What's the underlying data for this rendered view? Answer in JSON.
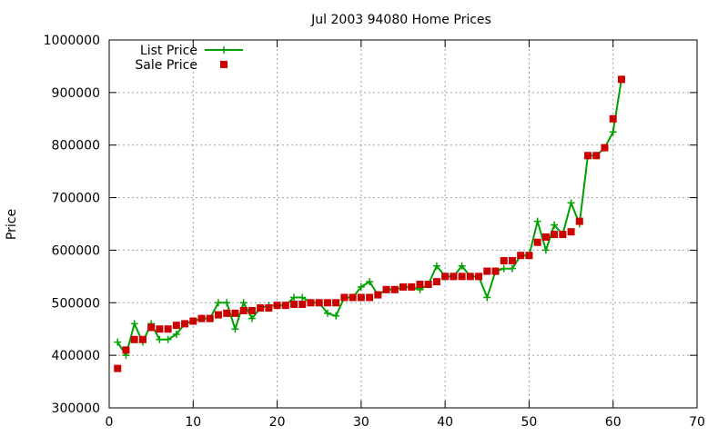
{
  "chart_data": {
    "type": "line",
    "title": "Jul 2003 94080 Home Prices",
    "xlabel": "",
    "ylabel": "Price",
    "xlim": [
      0,
      70
    ],
    "ylim": [
      300000,
      1000000
    ],
    "xticks": [
      0,
      10,
      20,
      30,
      40,
      50,
      60,
      70
    ],
    "yticks": [
      300000,
      400000,
      500000,
      600000,
      700000,
      800000,
      900000,
      1000000
    ],
    "grid": true,
    "legend_position": "top-left",
    "series": [
      {
        "name": "List Price",
        "style": "line-with-plus-markers",
        "color": "#00a000",
        "x": [
          1,
          2,
          3,
          4,
          5,
          6,
          7,
          8,
          9,
          10,
          11,
          12,
          13,
          14,
          15,
          16,
          17,
          18,
          19,
          20,
          21,
          22,
          23,
          24,
          25,
          26,
          27,
          28,
          29,
          30,
          31,
          32,
          33,
          34,
          35,
          36,
          37,
          38,
          39,
          40,
          41,
          42,
          43,
          44,
          45,
          46,
          47,
          48,
          49,
          50,
          51,
          52,
          53,
          54,
          55,
          56,
          57,
          58,
          59,
          60,
          61
        ],
        "values": [
          425000,
          400000,
          460000,
          425000,
          460000,
          430000,
          430000,
          440000,
          460000,
          465000,
          470000,
          470000,
          500000,
          500000,
          450000,
          500000,
          470000,
          490000,
          495000,
          495000,
          495000,
          510000,
          510000,
          500000,
          500000,
          480000,
          475000,
          510000,
          510000,
          530000,
          540000,
          515000,
          525000,
          525000,
          530000,
          530000,
          525000,
          535000,
          570000,
          550000,
          550000,
          570000,
          550000,
          550000,
          510000,
          560000,
          565000,
          565000,
          590000,
          590000,
          655000,
          600000,
          648000,
          630000,
          690000,
          650000,
          780000,
          780000,
          795000,
          825000,
          925000
        ]
      },
      {
        "name": "Sale Price",
        "style": "square-markers",
        "color": "#cc0000",
        "x": [
          1,
          2,
          3,
          4,
          5,
          6,
          7,
          8,
          9,
          10,
          11,
          12,
          13,
          14,
          15,
          16,
          17,
          18,
          19,
          20,
          21,
          22,
          23,
          24,
          25,
          26,
          27,
          28,
          29,
          30,
          31,
          32,
          33,
          34,
          35,
          36,
          37,
          38,
          39,
          40,
          41,
          42,
          43,
          44,
          45,
          46,
          47,
          48,
          49,
          50,
          51,
          52,
          53,
          54,
          55,
          56,
          57,
          58,
          59,
          60,
          61
        ],
        "values": [
          375000,
          410000,
          430000,
          430000,
          453000,
          450000,
          450000,
          457000,
          460000,
          465000,
          470000,
          470000,
          477000,
          480000,
          480000,
          485000,
          485000,
          490000,
          490000,
          495000,
          495000,
          497000,
          497000,
          500000,
          500000,
          500000,
          500000,
          510000,
          510000,
          510000,
          510000,
          515000,
          525000,
          525000,
          530000,
          530000,
          535000,
          535000,
          540000,
          550000,
          550000,
          550000,
          550000,
          550000,
          560000,
          560000,
          580000,
          580000,
          590000,
          590000,
          615000,
          625000,
          630000,
          630000,
          635000,
          655000,
          780000,
          780000,
          795000,
          850000,
          925000
        ]
      }
    ]
  }
}
